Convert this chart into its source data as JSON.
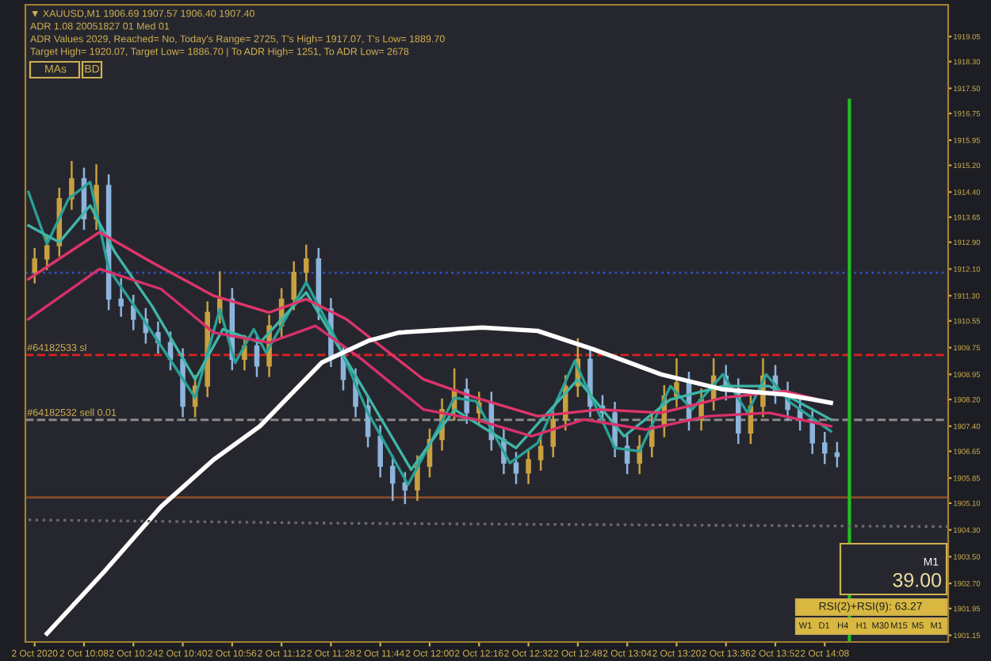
{
  "chart_data": {
    "type": "candlestick",
    "x": [
      "2020-10-02T09:52",
      "2020-10-02T09:56",
      "2020-10-02T10:00",
      "2020-10-02T10:04",
      "2020-10-02T10:08",
      "2020-10-02T10:12",
      "2020-10-02T10:16",
      "2020-10-02T10:20",
      "2020-10-02T10:24",
      "2020-10-02T10:28",
      "2020-10-02T10:32",
      "2020-10-02T10:36",
      "2020-10-02T10:40",
      "2020-10-02T10:44",
      "2020-10-02T10:48",
      "2020-10-02T10:52",
      "2020-10-02T10:56",
      "2020-10-02T11:00",
      "2020-10-02T11:04",
      "2020-10-02T11:08",
      "2020-10-02T11:12",
      "2020-10-02T11:16",
      "2020-10-02T11:20",
      "2020-10-02T11:24",
      "2020-10-02T11:28",
      "2020-10-02T11:32",
      "2020-10-02T11:36",
      "2020-10-02T11:40",
      "2020-10-02T11:44",
      "2020-10-02T11:48",
      "2020-10-02T11:52",
      "2020-10-02T11:56",
      "2020-10-02T12:00",
      "2020-10-02T12:04",
      "2020-10-02T12:08",
      "2020-10-02T12:12",
      "2020-10-02T12:16",
      "2020-10-02T12:20",
      "2020-10-02T12:24",
      "2020-10-02T12:28",
      "2020-10-02T12:32",
      "2020-10-02T12:36",
      "2020-10-02T12:40",
      "2020-10-02T12:44",
      "2020-10-02T12:48",
      "2020-10-02T12:52",
      "2020-10-02T12:56",
      "2020-10-02T13:00",
      "2020-10-02T13:04",
      "2020-10-02T13:08",
      "2020-10-02T13:12",
      "2020-10-02T13:16",
      "2020-10-02T13:20",
      "2020-10-02T13:24",
      "2020-10-02T13:28",
      "2020-10-02T13:32",
      "2020-10-02T13:36",
      "2020-10-02T13:40",
      "2020-10-02T13:44",
      "2020-10-02T13:48",
      "2020-10-02T13:52",
      "2020-10-02T13:56",
      "2020-10-02T14:00",
      "2020-10-02T14:04",
      "2020-10-02T14:08",
      "2020-10-02T14:12"
    ],
    "ohlc": [
      [
        1912.0,
        1912.7,
        1911.7,
        1912.4
      ],
      [
        1912.4,
        1913.1,
        1912.1,
        1912.8
      ],
      [
        1912.8,
        1914.5,
        1912.5,
        1914.2
      ],
      [
        1914.2,
        1915.3,
        1913.9,
        1914.8
      ],
      [
        1914.8,
        1915.1,
        1913.3,
        1913.6
      ],
      [
        1913.6,
        1915.2,
        1913.3,
        1914.6
      ],
      [
        1914.6,
        1914.9,
        1910.9,
        1911.2
      ],
      [
        1911.2,
        1911.8,
        1910.7,
        1911.0
      ],
      [
        1911.0,
        1911.3,
        1910.3,
        1910.6
      ],
      [
        1910.6,
        1910.9,
        1909.9,
        1910.2
      ],
      [
        1910.2,
        1910.5,
        1909.6,
        1909.9
      ],
      [
        1909.9,
        1910.2,
        1909.1,
        1909.4
      ],
      [
        1909.4,
        1909.7,
        1907.7,
        1908.0
      ],
      [
        1908.0,
        1908.9,
        1907.7,
        1908.6
      ],
      [
        1908.6,
        1911.1,
        1908.3,
        1910.8
      ],
      [
        1910.8,
        1912.0,
        1910.5,
        1911.2
      ],
      [
        1911.2,
        1911.5,
        1909.1,
        1909.4
      ],
      [
        1909.4,
        1910.1,
        1909.1,
        1909.8
      ],
      [
        1909.8,
        1910.1,
        1908.9,
        1909.2
      ],
      [
        1909.2,
        1910.7,
        1908.9,
        1910.4
      ],
      [
        1910.4,
        1911.5,
        1910.1,
        1911.2
      ],
      [
        1911.2,
        1912.3,
        1910.9,
        1912.0
      ],
      [
        1912.0,
        1912.8,
        1911.7,
        1912.4
      ],
      [
        1912.4,
        1912.7,
        1910.6,
        1910.9
      ],
      [
        1910.9,
        1911.2,
        1909.2,
        1909.5
      ],
      [
        1909.5,
        1909.8,
        1908.5,
        1908.8
      ],
      [
        1908.8,
        1909.1,
        1907.7,
        1908.0
      ],
      [
        1908.0,
        1908.3,
        1906.8,
        1907.1
      ],
      [
        1907.1,
        1907.4,
        1905.9,
        1906.2
      ],
      [
        1906.2,
        1906.5,
        1905.2,
        1905.7
      ],
      [
        1905.7,
        1906.0,
        1905.1,
        1905.5
      ],
      [
        1905.5,
        1906.5,
        1905.2,
        1906.2
      ],
      [
        1906.2,
        1907.3,
        1905.9,
        1907.0
      ],
      [
        1907.0,
        1908.2,
        1906.7,
        1907.9
      ],
      [
        1907.9,
        1909.1,
        1907.6,
        1908.5
      ],
      [
        1908.5,
        1908.8,
        1907.5,
        1907.8
      ],
      [
        1907.8,
        1908.4,
        1907.5,
        1908.1
      ],
      [
        1908.1,
        1908.4,
        1906.7,
        1907.0
      ],
      [
        1907.0,
        1907.3,
        1906.0,
        1906.3
      ],
      [
        1906.3,
        1906.6,
        1905.7,
        1906.0
      ],
      [
        1906.0,
        1906.7,
        1905.7,
        1906.4
      ],
      [
        1906.4,
        1907.1,
        1906.1,
        1906.8
      ],
      [
        1906.8,
        1907.9,
        1906.5,
        1907.6
      ],
      [
        1907.6,
        1908.9,
        1907.3,
        1908.6
      ],
      [
        1908.6,
        1910.0,
        1908.3,
        1909.4
      ],
      [
        1909.4,
        1909.7,
        1907.7,
        1908.0
      ],
      [
        1908.0,
        1908.3,
        1907.5,
        1907.8
      ],
      [
        1907.8,
        1908.1,
        1906.5,
        1906.8
      ],
      [
        1906.8,
        1907.1,
        1906.0,
        1906.3
      ],
      [
        1906.3,
        1907.1,
        1906.0,
        1906.8
      ],
      [
        1906.8,
        1907.7,
        1906.5,
        1907.4
      ],
      [
        1907.4,
        1908.6,
        1907.1,
        1908.3
      ],
      [
        1908.3,
        1909.4,
        1908.0,
        1908.7
      ],
      [
        1908.7,
        1909.0,
        1907.3,
        1907.6
      ],
      [
        1907.6,
        1908.5,
        1907.3,
        1908.2
      ],
      [
        1908.2,
        1909.4,
        1907.9,
        1908.9
      ],
      [
        1908.9,
        1909.2,
        1908.2,
        1908.5
      ],
      [
        1908.5,
        1908.8,
        1906.9,
        1907.2
      ],
      [
        1907.2,
        1908.3,
        1906.9,
        1908.0
      ],
      [
        1908.0,
        1909.4,
        1907.7,
        1908.9
      ],
      [
        1908.9,
        1909.2,
        1908.1,
        1908.4
      ],
      [
        1908.4,
        1908.7,
        1907.6,
        1907.9
      ],
      [
        1907.9,
        1908.2,
        1907.3,
        1907.6
      ],
      [
        1907.6,
        1907.9,
        1906.6,
        1906.9
      ],
      [
        1906.9,
        1907.2,
        1906.3,
        1906.6
      ],
      [
        1906.6,
        1906.9,
        1906.2,
        1906.5
      ]
    ],
    "colors": [
      "#c8a040",
      "#c8a040",
      "#c8a040",
      "#c8a040",
      "#8cb4dc",
      "#c8a040",
      "#8cb4dc",
      "#8cb4dc",
      "#8cb4dc",
      "#8cb4dc",
      "#8cb4dc",
      "#8cb4dc",
      "#8cb4dc",
      "#c8a040",
      "#c8a040",
      "#c8a040",
      "#8cb4dc",
      "#c8a040",
      "#8cb4dc",
      "#c8a040",
      "#c8a040",
      "#c8a040",
      "#c8a040",
      "#8cb4dc",
      "#8cb4dc",
      "#8cb4dc",
      "#8cb4dc",
      "#8cb4dc",
      "#8cb4dc",
      "#8cb4dc",
      "#8cb4dc",
      "#c8a040",
      "#c8a040",
      "#c8a040",
      "#c8a040",
      "#8cb4dc",
      "#c8a040",
      "#8cb4dc",
      "#8cb4dc",
      "#8cb4dc",
      "#c8a040",
      "#c8a040",
      "#c8a040",
      "#c8a040",
      "#c8a040",
      "#8cb4dc",
      "#8cb4dc",
      "#8cb4dc",
      "#8cb4dc",
      "#c8a040",
      "#c8a040",
      "#c8a040",
      "#c8a040",
      "#8cb4dc",
      "#c8a040",
      "#c8a040",
      "#8cb4dc",
      "#8cb4dc",
      "#c8a040",
      "#c8a040",
      "#8cb4dc",
      "#8cb4dc",
      "#8cb4dc",
      "#8cb4dc",
      "#8cb4dc",
      "#8cb4dc"
    ],
    "series": [
      {
        "type": "line",
        "color": "#2aa198",
        "line_style": "solid",
        "x": [
          "2020-10-02T09:50",
          "2020-10-02T09:56",
          "2020-10-02T10:03",
          "2020-10-02T10:10",
          "2020-10-02T10:16",
          "2020-10-02T10:25",
          "2020-10-02T10:38",
          "2020-10-02T10:44",
          "2020-10-02T10:52",
          "2020-10-02T10:57",
          "2020-10-02T11:03",
          "2020-10-02T11:07",
          "2020-10-02T11:20",
          "2020-10-02T11:30",
          "2020-10-02T11:40",
          "2020-10-02T11:53",
          "2020-10-02T12:08",
          "2020-10-02T12:15",
          "2020-10-02T12:26",
          "2020-10-02T12:35",
          "2020-10-02T12:47",
          "2020-10-02T13:00",
          "2020-10-02T13:08",
          "2020-10-02T13:18",
          "2020-10-02T13:25",
          "2020-10-02T13:35",
          "2020-10-02T13:43",
          "2020-10-02T13:49",
          "2020-10-02T13:57",
          "2020-10-02T14:10"
        ],
        "values": [
          1914.4,
          1912.85,
          1914.2,
          1914.7,
          1912.1,
          1910.9,
          1909.1,
          1908.25,
          1910.9,
          1909.3,
          1910.3,
          1909.6,
          1911.7,
          1909.95,
          1907.8,
          1905.65,
          1908.25,
          1908.15,
          1906.3,
          1906.9,
          1909.35,
          1906.75,
          1906.65,
          1908.6,
          1907.9,
          1908.95,
          1907.8,
          1908.95,
          1908.1,
          1907.25
        ]
      },
      {
        "type": "line",
        "color": "#3fb6a8",
        "line_style": "solid",
        "x": [
          "2020-10-02T09:50",
          "2020-10-02T10:00",
          "2020-10-02T10:10",
          "2020-10-02T10:18",
          "2020-10-02T10:30",
          "2020-10-02T10:44",
          "2020-10-02T10:53",
          "2020-10-02T11:05",
          "2020-10-02T11:20",
          "2020-10-02T11:38",
          "2020-10-02T11:54",
          "2020-10-02T12:08",
          "2020-10-02T12:28",
          "2020-10-02T12:48",
          "2020-10-02T13:03",
          "2020-10-02T13:18",
          "2020-10-02T13:35",
          "2020-10-02T13:50",
          "2020-10-02T14:10"
        ],
        "values": [
          1913.4,
          1912.9,
          1914.0,
          1912.6,
          1911.0,
          1908.8,
          1910.3,
          1909.9,
          1911.4,
          1908.6,
          1906.1,
          1907.9,
          1906.75,
          1908.8,
          1907.1,
          1908.2,
          1908.6,
          1908.6,
          1907.6
        ]
      },
      {
        "type": "line",
        "color": "#e0356a",
        "line_style": "solid",
        "x": [
          "2020-10-02T09:50",
          "2020-10-02T10:13",
          "2020-10-02T10:30",
          "2020-10-02T10:50",
          "2020-10-02T11:08",
          "2020-10-02T11:20",
          "2020-10-02T11:33",
          "2020-10-02T11:58",
          "2020-10-02T12:15",
          "2020-10-02T12:35",
          "2020-10-02T12:55",
          "2020-10-02T13:15",
          "2020-10-02T13:35",
          "2020-10-02T13:55",
          "2020-10-02T14:10"
        ],
        "values": [
          1911.8,
          1913.2,
          1912.3,
          1911.3,
          1910.8,
          1911.2,
          1910.6,
          1908.8,
          1908.25,
          1907.7,
          1907.9,
          1907.8,
          1908.25,
          1908.45,
          1908.1
        ]
      },
      {
        "type": "line",
        "color": "#d8306a",
        "line_style": "solid",
        "x": [
          "2020-10-02T09:50",
          "2020-10-02T10:13",
          "2020-10-02T10:33",
          "2020-10-02T10:50",
          "2020-10-02T11:08",
          "2020-10-02T11:23",
          "2020-10-02T11:38",
          "2020-10-02T11:58",
          "2020-10-02T12:15",
          "2020-10-02T12:33",
          "2020-10-02T12:50",
          "2020-10-02T13:10",
          "2020-10-02T13:30",
          "2020-10-02T13:50",
          "2020-10-02T14:10"
        ],
        "values": [
          1910.6,
          1912.1,
          1911.5,
          1910.2,
          1909.9,
          1910.4,
          1909.4,
          1907.9,
          1907.6,
          1907.1,
          1907.6,
          1907.3,
          1907.7,
          1907.8,
          1907.4
        ]
      },
      {
        "type": "line",
        "color": "#ffffff",
        "line_style": "solid",
        "x": [
          "2020-10-02T09:56",
          "2020-10-02T10:15",
          "2020-10-02T10:33",
          "2020-10-02T10:50",
          "2020-10-02T11:05",
          "2020-10-02T11:25",
          "2020-10-02T11:40",
          "2020-10-02T11:50",
          "2020-10-02T12:17",
          "2020-10-02T12:35",
          "2020-10-02T12:53",
          "2020-10-02T13:15",
          "2020-10-02T13:35",
          "2020-10-02T13:55",
          "2020-10-02T14:10"
        ],
        "values": [
          1901.2,
          1903.1,
          1905.0,
          1906.4,
          1907.4,
          1909.3,
          1909.95,
          1910.2,
          1910.35,
          1910.25,
          1909.7,
          1908.95,
          1908.5,
          1908.35,
          1908.1
        ]
      },
      {
        "type": "line",
        "color": "#6a6a70",
        "line_style": "dotted",
        "x": [
          "2020-10-02T09:50",
          "2020-10-02T11:30",
          "2020-10-02T14:48"
        ],
        "values": [
          1904.6,
          1904.5,
          1904.4
        ]
      }
    ],
    "ref_lines": [
      {
        "axis": "y",
        "value": 1911.99,
        "color": "#3050c0",
        "line_style": "dotted"
      },
      {
        "axis": "y",
        "value": 1909.53,
        "label": "#64182533 sl",
        "color": "#e02020",
        "line_style": "dashed"
      },
      {
        "axis": "y",
        "value": 1907.59,
        "label": "#64182532 sell 0.01",
        "color": "#8a8a8a",
        "line_style": "dashed"
      },
      {
        "axis": "y",
        "value": 1905.27,
        "color": "#8a4a2a",
        "line_style": "solid"
      },
      {
        "axis": "x",
        "value": "2020-10-02T14:16",
        "color": "#20c020",
        "line_style": "solid"
      }
    ],
    "annotations": [
      "▼ XAUUSD,M1 1906.69 1907.57 1906.40 1907.40",
      "ADR 1.08 20051827 01 Med 01",
      "ADR Values 2029, Reached= No, Today's Range= 2725, T's High= 1917.07, T's Low= 1889.70",
      "Target High= 1920.07, Target Low= 1886.70 | To ADR High= 1251, To ADR Low= 2678",
      "MAs",
      "BD",
      "M1",
      "39.00",
      "RSI(2)+RSI(9): 63.27",
      "W1",
      "D1",
      "H4",
      "H1",
      "M30",
      "M15",
      "M5",
      "M1"
    ],
    "xlim": [
      "2020-10-02T09:49",
      "2020-10-02T14:48"
    ],
    "xticks": [
      {
        "value": "2020-10-02T09:52",
        "label": "2 Oct 2020"
      },
      {
        "value": "2020-10-02T10:08",
        "label": "2 Oct 10:08"
      },
      {
        "value": "2020-10-02T10:24",
        "label": "2 Oct 10:24"
      },
      {
        "value": "2020-10-02T10:40",
        "label": "2 Oct 10:40"
      },
      {
        "value": "2020-10-02T10:56",
        "label": "2 Oct 10:56"
      },
      {
        "value": "2020-10-02T11:12",
        "label": "2 Oct 11:12"
      },
      {
        "value": "2020-10-02T11:28",
        "label": "2 Oct 11:28"
      },
      {
        "value": "2020-10-02T11:44",
        "label": "2 Oct 11:44"
      },
      {
        "value": "2020-10-02T12:00",
        "label": "2 Oct 12:00"
      },
      {
        "value": "2020-10-02T12:16",
        "label": "2 Oct 12:16"
      },
      {
        "value": "2020-10-02T12:32",
        "label": "2 Oct 12:32"
      },
      {
        "value": "2020-10-02T12:48",
        "label": "2 Oct 12:48"
      },
      {
        "value": "2020-10-02T13:04",
        "label": "2 Oct 13:04"
      },
      {
        "value": "2020-10-02T13:20",
        "label": "2 Oct 13:20"
      },
      {
        "value": "2020-10-02T13:36",
        "label": "2 Oct 13:36"
      },
      {
        "value": "2020-10-02T13:52",
        "label": "2 Oct 13:52"
      },
      {
        "value": "2020-10-02T14:08",
        "label": "2 Oct 14:08"
      }
    ],
    "ylim": [
      1900.95,
      1920.0
    ],
    "yticks": [
      {
        "value": 1919.05,
        "label": "1919.05"
      },
      {
        "value": 1918.3,
        "label": "1918.30"
      },
      {
        "value": 1917.5,
        "label": "1917.50"
      },
      {
        "value": 1916.75,
        "label": "1916.75"
      },
      {
        "value": 1915.95,
        "label": "1915.95"
      },
      {
        "value": 1915.2,
        "label": "1915.20"
      },
      {
        "value": 1914.4,
        "label": "1914.40"
      },
      {
        "value": 1913.65,
        "label": "1913.65"
      },
      {
        "value": 1912.9,
        "label": "1912.90"
      },
      {
        "value": 1912.1,
        "label": "1912.10"
      },
      {
        "value": 1911.3,
        "label": "1911.30"
      },
      {
        "value": 1910.55,
        "label": "1910.55"
      },
      {
        "value": 1909.75,
        "label": "1909.75"
      },
      {
        "value": 1908.95,
        "label": "1908.95"
      },
      {
        "value": 1908.2,
        "label": "1908.20"
      },
      {
        "value": 1907.4,
        "label": "1907.40"
      },
      {
        "value": 1906.65,
        "label": "1906.65"
      },
      {
        "value": 1905.85,
        "label": "1905.85"
      },
      {
        "value": 1905.1,
        "label": "1905.10"
      },
      {
        "value": 1904.3,
        "label": "1904.30"
      },
      {
        "value": 1903.5,
        "label": "1903.50"
      },
      {
        "value": 1902.7,
        "label": "1902.70"
      },
      {
        "value": 1901.95,
        "label": "1901.95"
      },
      {
        "value": 1901.15,
        "label": "1901.15"
      }
    ],
    "grid": false,
    "legend": false
  }
}
